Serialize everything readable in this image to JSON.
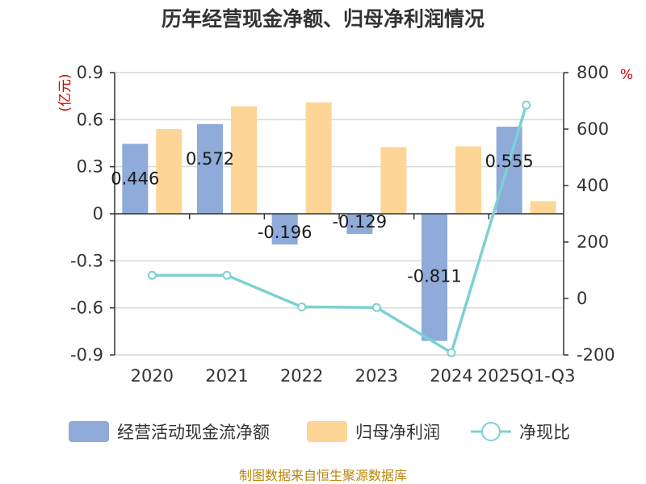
{
  "chart_data": {
    "type": "bar+line",
    "title": "历年经营现金净额、归母净利润情况",
    "categories": [
      "2020",
      "2021",
      "2022",
      "2023",
      "2024",
      "2025Q1-Q3"
    ],
    "series": [
      {
        "name": "经营活动现金流净额",
        "type": "bar",
        "axis": "left",
        "color": "#8eabd9",
        "values": [
          0.446,
          0.572,
          -0.196,
          -0.129,
          -0.811,
          0.555
        ],
        "labels": [
          "0.446",
          "0.572",
          "-0.196",
          "-0.129",
          "-0.811",
          "0.555"
        ]
      },
      {
        "name": "归母净利润",
        "type": "bar",
        "axis": "left",
        "color": "#fdd596",
        "values": [
          0.54,
          0.685,
          0.71,
          0.425,
          0.43,
          0.08
        ]
      },
      {
        "name": "净现比",
        "type": "line",
        "axis": "right",
        "color": "#7dd0d4",
        "values": [
          82,
          82,
          -30,
          -32,
          -192,
          685
        ]
      }
    ],
    "y_left": {
      "unit": "(亿元)",
      "ylim": [
        -0.9,
        0.9
      ],
      "ticks": [
        0.9,
        0.6,
        0.3,
        0,
        -0.3,
        -0.6,
        -0.9
      ],
      "tick_labels": [
        "0.9",
        "0.6",
        "0.3",
        "0",
        "-0.3",
        "-0.6",
        "-0.9"
      ]
    },
    "y_right": {
      "unit": "%",
      "ylim": [
        -200,
        800
      ],
      "ticks": [
        800,
        600,
        400,
        200,
        0,
        -200
      ],
      "tick_labels": [
        "800",
        "600",
        "400",
        "200",
        "0",
        "-200"
      ]
    },
    "grid": true,
    "legend_position": "bottom"
  },
  "source": "制图数据来自恒生聚源数据库"
}
